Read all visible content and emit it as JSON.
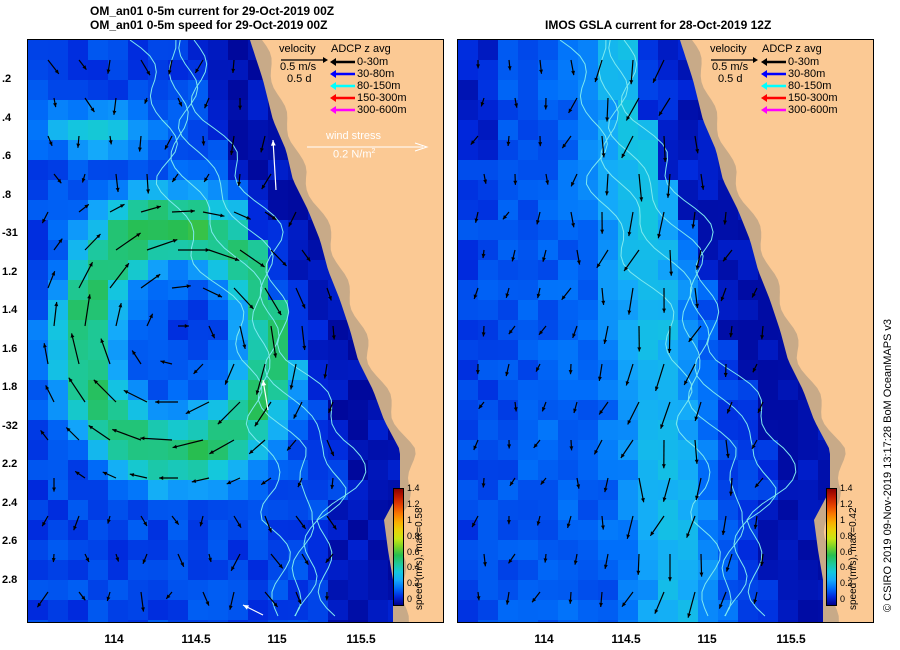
{
  "titles": {
    "left_line1": "OM_an01 0-5m current for 29-Oct-2019 00Z",
    "left_line2": "OM_an01 0-5m speed for 29-Oct-2019 00Z",
    "right": "IMOS GSLA current for 28-Oct-2019 12Z"
  },
  "velocity_legend": {
    "title": "velocity",
    "scale": "0.5 m/s",
    "duration": "0.5 d"
  },
  "adcp_legend": {
    "title": "ADCP z avg",
    "items": [
      {
        "label": "0-30m",
        "color": "#000000"
      },
      {
        "label": "30-80m",
        "color": "#0000ff"
      },
      {
        "label": "80-150m",
        "color": "#00ffff"
      },
      {
        "label": "150-300m",
        "color": "#ff0000"
      },
      {
        "label": "300-600m",
        "color": "#ff00ff"
      }
    ]
  },
  "wind_legend": {
    "title": "wind stress",
    "scale": "0.2 N/m",
    "superscript": "2"
  },
  "lat_labels": [
    ".2",
    ".4",
    ".6",
    ".8",
    "-31",
    "1.2",
    "1.4",
    "1.6",
    "1.8",
    "-32",
    "2.2",
    "2.4",
    "2.6",
    "2.8"
  ],
  "lon_labels_left": [
    "114",
    "114.5",
    "115",
    "115.5"
  ],
  "lon_labels_right": [
    "114",
    "114.5",
    "115",
    "115.5"
  ],
  "colorbar_left": {
    "ticks": [
      "1.4",
      "1.2",
      "1",
      "0.8",
      "0.6",
      "0.4",
      "0.2",
      "0"
    ],
    "label": "speed (m/s), max=0.58",
    "max": 0.58
  },
  "colorbar_right": {
    "ticks": [
      "1.4",
      "1.2",
      "1",
      "0.8",
      "0.6",
      "0.4",
      "0.2",
      "0"
    ],
    "label": "speed (m/s), max=0.42",
    "max": 0.42
  },
  "credit": "© CSIRO 2019   09-Nov-2019 13:17:28 BoM OceanMAPS v3",
  "colors": {
    "land": "#fbc994",
    "coast_fill": "#c8aa88",
    "deep_blue": "#0a2fc8",
    "mid_blue": "#1e6cf0",
    "light_blue": "#22a4f4",
    "cyan_green": "#17c8b0",
    "green": "#1abc5a",
    "bathy": "#7ee9f0"
  }
}
